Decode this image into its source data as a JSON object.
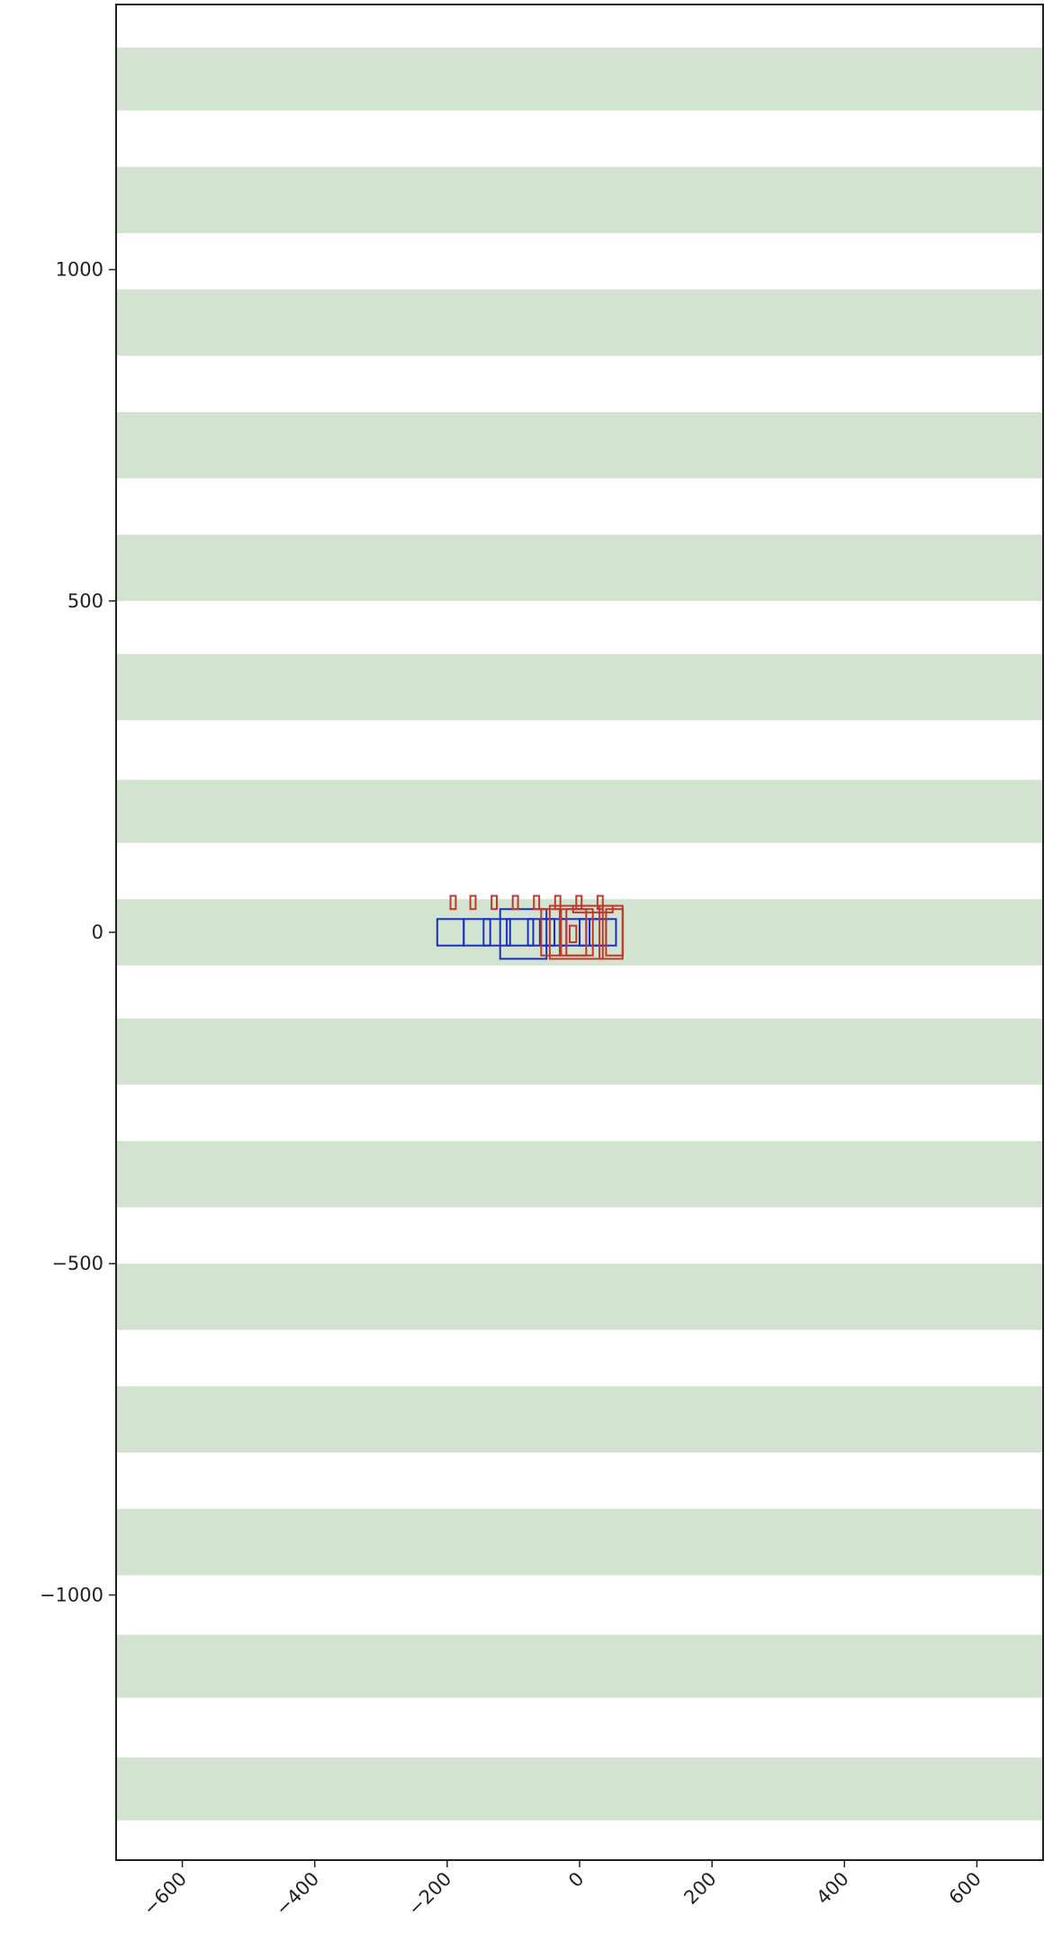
{
  "chart_data": {
    "type": "scatter",
    "title": "",
    "xlabel": "",
    "ylabel": "",
    "xlim": [
      -700,
      700
    ],
    "ylim": [
      -1400,
      1400
    ],
    "grid": false,
    "xticks": [
      -600,
      -400,
      -200,
      0,
      200,
      400,
      600
    ],
    "xtick_labels": [
      "−600",
      "−400",
      "−200",
      "0",
      "200",
      "400",
      "600"
    ],
    "yticks": [
      -1000,
      -500,
      0,
      500,
      1000
    ],
    "ytick_labels": [
      "−1000",
      "−500",
      "0",
      "500",
      "1000"
    ],
    "stripes": {
      "color": "#d2e4cf",
      "bands": [
        [
          -1340,
          -1245
        ],
        [
          -1155,
          -1060
        ],
        [
          -970,
          -870
        ],
        [
          -785,
          -685
        ],
        [
          -600,
          -500
        ],
        [
          -415,
          -315
        ],
        [
          -230,
          -130
        ],
        [
          -50,
          50
        ],
        [
          135,
          230
        ],
        [
          320,
          420
        ],
        [
          500,
          600
        ],
        [
          685,
          785
        ],
        [
          870,
          970
        ],
        [
          1055,
          1155
        ],
        [
          1240,
          1335
        ]
      ]
    },
    "series": [
      {
        "color": "#1a2fc4",
        "rects": [
          [
            -215,
            -20,
            40,
            40
          ],
          [
            -175,
            -20,
            40,
            40
          ],
          [
            -145,
            -20,
            40,
            40
          ],
          [
            -120,
            -40,
            70,
            75
          ],
          [
            -110,
            -20,
            40,
            40
          ],
          [
            -78,
            -20,
            40,
            40
          ],
          [
            -60,
            -20,
            40,
            40
          ],
          [
            -30,
            -20,
            40,
            40
          ],
          [
            0,
            -20,
            40,
            40
          ],
          [
            15,
            -20,
            40,
            40
          ]
        ]
      },
      {
        "color": "#c0392b",
        "rects": [
          [
            -195,
            35,
            8,
            20
          ],
          [
            -165,
            35,
            8,
            20
          ],
          [
            -133,
            35,
            8,
            20
          ],
          [
            -101,
            35,
            8,
            20
          ],
          [
            -69,
            35,
            8,
            20
          ],
          [
            -37,
            35,
            8,
            20
          ],
          [
            -5,
            35,
            8,
            20
          ],
          [
            27,
            35,
            8,
            20
          ],
          [
            -58,
            -35,
            30,
            70
          ],
          [
            -45,
            -40,
            80,
            80
          ],
          [
            -30,
            -35,
            40,
            70
          ],
          [
            -20,
            -35,
            40,
            70
          ],
          [
            30,
            -40,
            35,
            80
          ],
          [
            40,
            -35,
            25,
            70
          ],
          [
            -15,
            -15,
            10,
            25
          ],
          [
            -10,
            30,
            60,
            10
          ]
        ]
      }
    ]
  }
}
